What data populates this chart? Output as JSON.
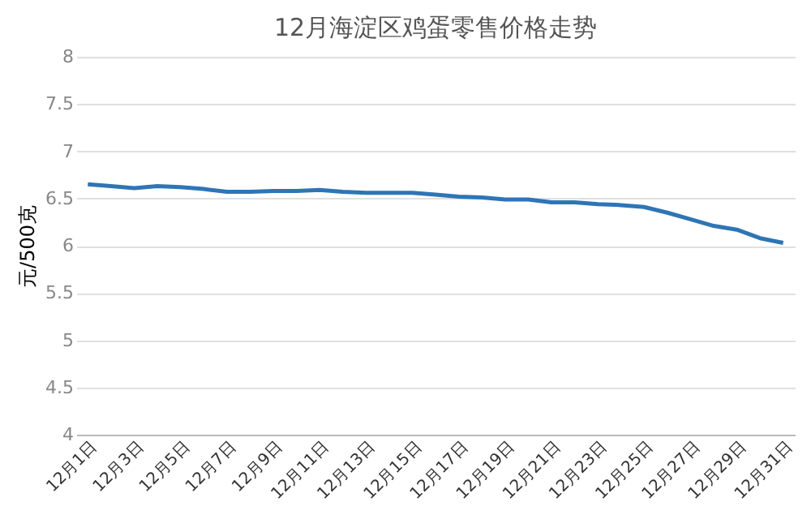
{
  "chart_data": {
    "type": "line",
    "title": "12月海淀区鸡蛋零售价格走势",
    "ylabel": "元/500克",
    "categories": [
      "12月1日",
      null,
      "12月3日",
      null,
      "12月5日",
      null,
      "12月7日",
      null,
      "12月9日",
      null,
      "12月11日",
      null,
      "12月13日",
      null,
      "12月15日",
      null,
      "12月17日",
      null,
      "12月19日",
      null,
      "12月21日",
      null,
      "12月23日",
      null,
      "12月25日",
      null,
      "12月27日",
      null,
      "12月29日",
      null,
      "12月31日"
    ],
    "series": [
      {
        "color": "#2e75b6",
        "values": [
          6.65,
          6.63,
          6.61,
          6.63,
          6.62,
          6.6,
          6.57,
          6.57,
          6.58,
          6.58,
          6.59,
          6.57,
          6.56,
          6.56,
          6.56,
          6.54,
          6.52,
          6.51,
          6.49,
          6.49,
          6.46,
          6.46,
          6.44,
          6.43,
          6.41,
          6.35,
          6.28,
          6.21,
          6.17,
          6.08,
          6.03
        ]
      }
    ],
    "ylim": [
      4,
      8
    ],
    "yticks": [
      4,
      4.5,
      5,
      5.5,
      6,
      6.5,
      7,
      7.5,
      8
    ],
    "grid": "y",
    "marker": "none",
    "line_style": "solid",
    "legend": false
  }
}
